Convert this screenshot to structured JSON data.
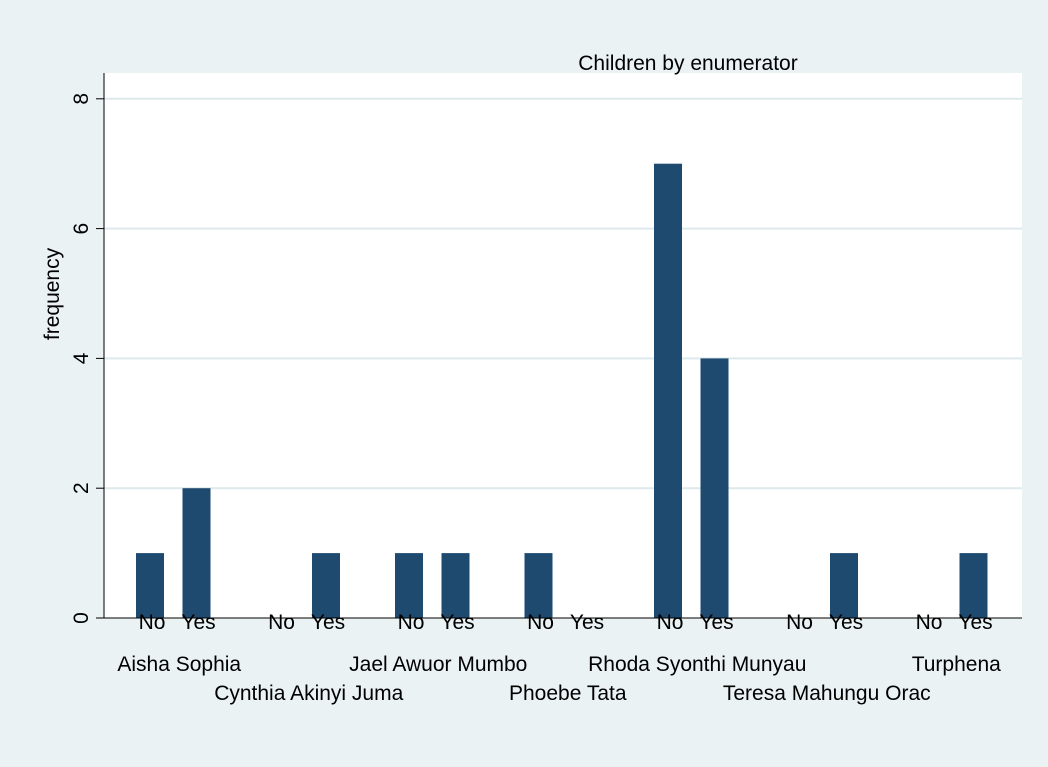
{
  "chart_data": {
    "type": "bar",
    "title": "Children by enumerator",
    "ylabel": "frequency",
    "xlabel": "",
    "ylim": [
      0,
      8
    ],
    "yticks": [
      0,
      2,
      4,
      6,
      8
    ],
    "grid": true,
    "legend": "none",
    "groups": [
      {
        "label": "Aisha Sophia",
        "bars": [
          {
            "label": "No",
            "value": 1
          },
          {
            "label": "Yes",
            "value": 2
          }
        ]
      },
      {
        "label": "Cynthia Akinyi Juma",
        "bars": [
          {
            "label": "No",
            "value": 0
          },
          {
            "label": "Yes",
            "value": 1
          }
        ]
      },
      {
        "label": "Jael Awuor Mumbo",
        "bars": [
          {
            "label": "No",
            "value": 1
          },
          {
            "label": "Yes",
            "value": 1
          }
        ]
      },
      {
        "label": "Phoebe Tata",
        "bars": [
          {
            "label": "No",
            "value": 1
          },
          {
            "label": "Yes",
            "value": 0
          }
        ]
      },
      {
        "label": "Rhoda Syonthi Munyau",
        "bars": [
          {
            "label": "No",
            "value": 7
          },
          {
            "label": "Yes",
            "value": 4
          }
        ]
      },
      {
        "label": "Teresa Mahungu Orac",
        "bars": [
          {
            "label": "No",
            "value": 0
          },
          {
            "label": "Yes",
            "value": 1
          }
        ]
      },
      {
        "label": "Turphena",
        "bars": [
          {
            "label": "No",
            "value": 0
          },
          {
            "label": "Yes",
            "value": 1
          }
        ]
      }
    ],
    "colors": {
      "bar": "#1f4a70",
      "grid": "#dde9ec",
      "plot_bg": "#ffffff",
      "page_bg": "#eaf2f3"
    }
  }
}
